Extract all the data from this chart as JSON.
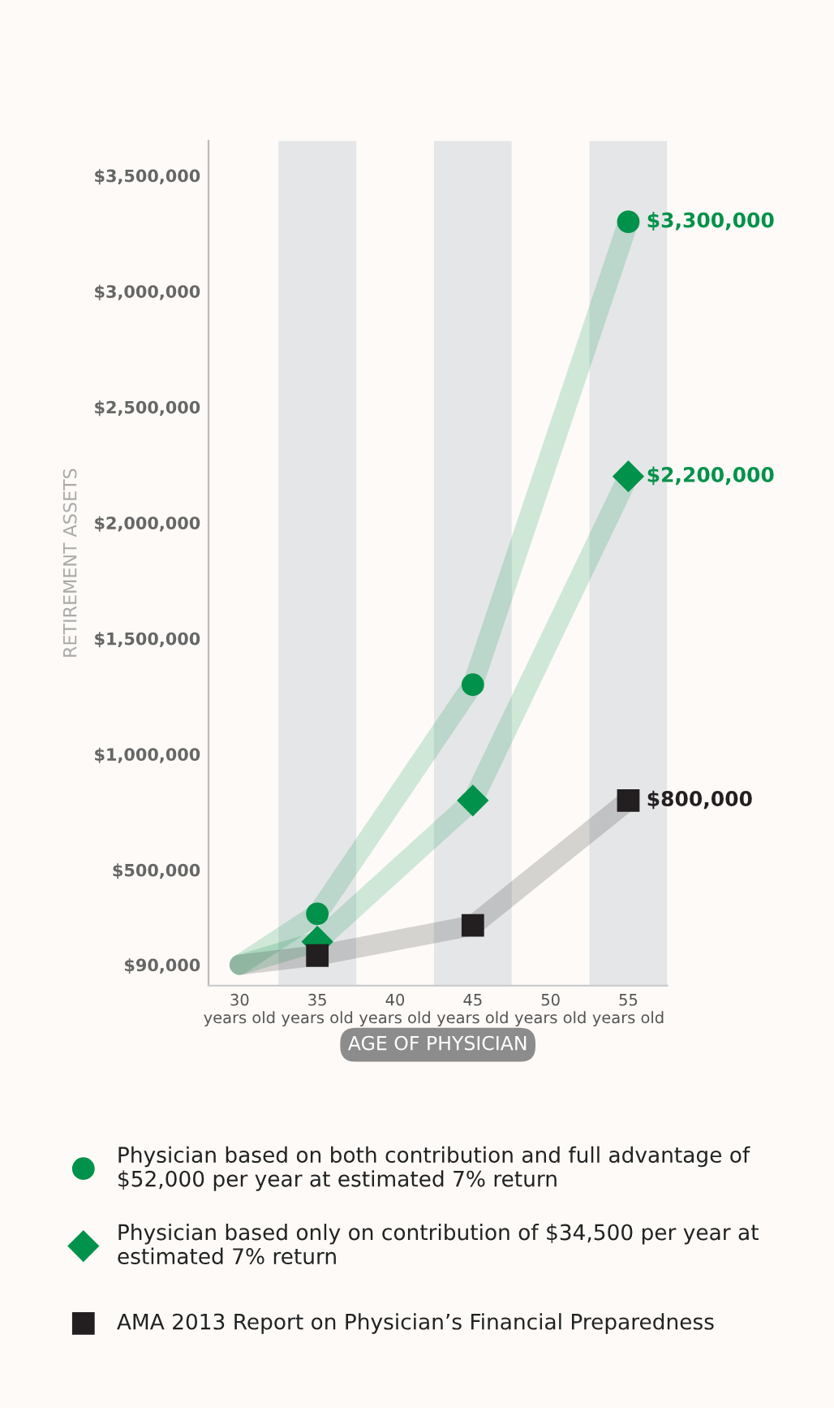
{
  "chart_data": {
    "type": "line",
    "xlabel": "AGE OF PHYSICIAN",
    "ylabel": "RETIREMENT ASSETS",
    "x": [
      30,
      35,
      45,
      55
    ],
    "series": [
      {
        "name": "Physician based on both contribution and full advantage of $52,000 per year at estimated 7% return",
        "color": "#00924a",
        "marker": "circle",
        "values": [
          90000,
          310000,
          1300000,
          3300000
        ],
        "value_labels": [
          null,
          null,
          null,
          "$3,300,000"
        ]
      },
      {
        "name": "Physician based only on contribution of $34,500 per year at estimated 7% return",
        "color": "#00924a",
        "marker": "diamond",
        "values": [
          90000,
          190000,
          800000,
          2200000
        ],
        "value_labels": [
          null,
          null,
          null,
          "$2,200,000"
        ]
      },
      {
        "name": "AMA 2013 Report on Physician’s Financial Preparedness",
        "color": "#231f20",
        "marker": "square",
        "values": [
          90000,
          130000,
          260000,
          800000
        ],
        "value_labels": [
          null,
          null,
          null,
          "$800,000"
        ]
      }
    ],
    "xlim": [
      28,
      57.5
    ],
    "xticks": [
      {
        "value": 30,
        "label": "30\nyears old"
      },
      {
        "value": 35,
        "label": "35\nyears old"
      },
      {
        "value": 40,
        "label": "40\nyears old"
      },
      {
        "value": 45,
        "label": "45\nyears old"
      },
      {
        "value": 50,
        "label": "50\nyears old"
      },
      {
        "value": 55,
        "label": "55\nyears old"
      }
    ],
    "ylim": [
      0,
      3650000
    ],
    "yticks": [
      {
        "value": 90000,
        "label": "$90,000"
      },
      {
        "value": 500000,
        "label": "$500,000"
      },
      {
        "value": 1000000,
        "label": "$1,000,000"
      },
      {
        "value": 1500000,
        "label": "$1,500,000"
      },
      {
        "value": 2000000,
        "label": "$2,000,000"
      },
      {
        "value": 2500000,
        "label": "$2,500,000"
      },
      {
        "value": 3000000,
        "label": "$3,000,000"
      },
      {
        "value": 3500000,
        "label": "$3,500,000"
      }
    ],
    "bands": [
      {
        "axis": "x",
        "from": 32.5,
        "to": 37.5,
        "color": "#e4e6e7"
      },
      {
        "axis": "x",
        "from": 42.5,
        "to": 47.5,
        "color": "#e4e6e7"
      },
      {
        "axis": "x",
        "from": 52.5,
        "to": 57.5,
        "color": "#e4e6e7"
      }
    ],
    "grid": false,
    "legend": "bottom"
  }
}
